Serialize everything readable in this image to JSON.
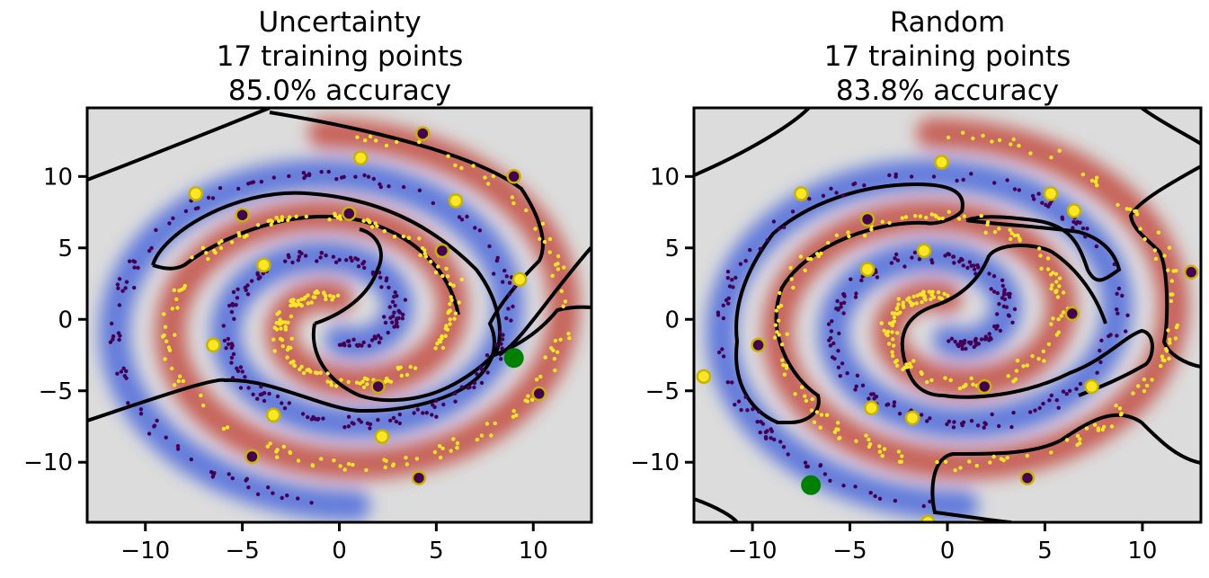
{
  "chart_data": [
    {
      "type": "scatter",
      "title_lines": [
        "Uncertainty",
        "17 training points",
        "85.0% accuracy"
      ],
      "xlim": [
        -13,
        13
      ],
      "ylim": [
        -14.2,
        14.8
      ],
      "xticks": [
        -10,
        -5,
        0,
        5,
        10
      ],
      "xtick_labels": [
        "−10",
        "−5",
        "0",
        "5",
        "10"
      ],
      "yticks": [
        -10,
        -5,
        0,
        5,
        10
      ],
      "ytick_labels": [
        "−10",
        "−5",
        "0",
        "5",
        "10"
      ],
      "training_points_class0": [
        [
          4.3,
          13.0
        ],
        [
          9.0,
          10.0
        ],
        [
          -5.0,
          7.3
        ],
        [
          0.5,
          7.4
        ],
        [
          5.3,
          4.8
        ],
        [
          2.0,
          -4.7
        ],
        [
          10.3,
          -5.2
        ],
        [
          -4.5,
          -9.6
        ],
        [
          4.1,
          -11.1
        ]
      ],
      "training_points_class1": [
        [
          1.1,
          11.3
        ],
        [
          -7.4,
          8.8
        ],
        [
          6.0,
          8.3
        ],
        [
          -3.9,
          3.8
        ],
        [
          9.3,
          2.8
        ],
        [
          -6.5,
          -1.8
        ],
        [
          -3.4,
          -6.7
        ],
        [
          2.2,
          -8.2
        ]
      ],
      "selected_point": [
        9.0,
        -2.7
      ],
      "colors": {
        "class0": "#440154",
        "class1": "#fde725",
        "selected": "#008000",
        "background": "#dcdcdc",
        "blue": "#3b4cc0",
        "red": "#b40426"
      }
    },
    {
      "type": "scatter",
      "title_lines": [
        "Random",
        "17 training points",
        "83.8% accuracy"
      ],
      "xlim": [
        -13,
        13
      ],
      "ylim": [
        -14.2,
        14.8
      ],
      "xticks": [
        -10,
        -5,
        0,
        5,
        10
      ],
      "xtick_labels": [
        "−10",
        "−5",
        "0",
        "5",
        "10"
      ],
      "yticks": [
        -10,
        -5,
        0,
        5,
        10
      ],
      "ytick_labels": [
        "−10",
        "−5",
        "0",
        "5",
        "10"
      ],
      "training_points_class0": [
        [
          -4.1,
          7.0
        ],
        [
          -9.7,
          -1.8
        ],
        [
          12.5,
          3.3
        ],
        [
          6.4,
          0.4
        ],
        [
          1.9,
          -4.7
        ],
        [
          4.1,
          -11.1
        ]
      ],
      "training_points_class1": [
        [
          -0.3,
          11.0
        ],
        [
          -7.5,
          8.8
        ],
        [
          5.3,
          8.8
        ],
        [
          6.5,
          7.6
        ],
        [
          -1.2,
          4.8
        ],
        [
          -4.1,
          3.5
        ],
        [
          -12.5,
          -4.0
        ],
        [
          -3.9,
          -6.2
        ],
        [
          -1.8,
          -6.9
        ],
        [
          7.4,
          -4.7
        ],
        [
          -1.0,
          -14.2
        ]
      ],
      "selected_point": [
        -7.0,
        -11.6
      ],
      "colors": {
        "class0": "#440154",
        "class1": "#fde725",
        "selected": "#008000",
        "background": "#dcdcdc",
        "blue": "#3b4cc0",
        "red": "#b40426"
      }
    }
  ]
}
